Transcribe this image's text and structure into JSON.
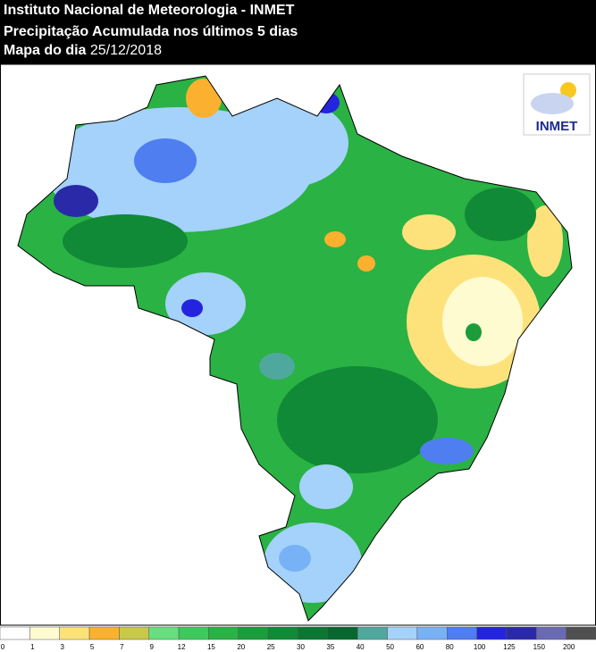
{
  "header": {
    "title": "Instituto Nacional de Meteorologia - INMET",
    "subtitle": "Precipitação Acumulada nos últimos 5 dias",
    "date_label": "Mapa do dia",
    "date": "25/12/2018"
  },
  "logo": {
    "text": "INMET"
  },
  "legend": {
    "labels": [
      0,
      1,
      3,
      5,
      7,
      9,
      12,
      15,
      20,
      25,
      30,
      35,
      40,
      50,
      60,
      80,
      100,
      125,
      150,
      200
    ],
    "colors": [
      "#ffffff",
      "#fffbd0",
      "#fde27c",
      "#fbb030",
      "#c8c84a",
      "#68de7c",
      "#40c85c",
      "#2ab244",
      "#1c9c3a",
      "#108a36",
      "#0a7832",
      "#06682e",
      "#4fa89e",
      "#a4d2fa",
      "#78b2f6",
      "#4e7ef0",
      "#2424e0",
      "#2a2aa8",
      "#6a6ab4",
      "#505050"
    ]
  }
}
